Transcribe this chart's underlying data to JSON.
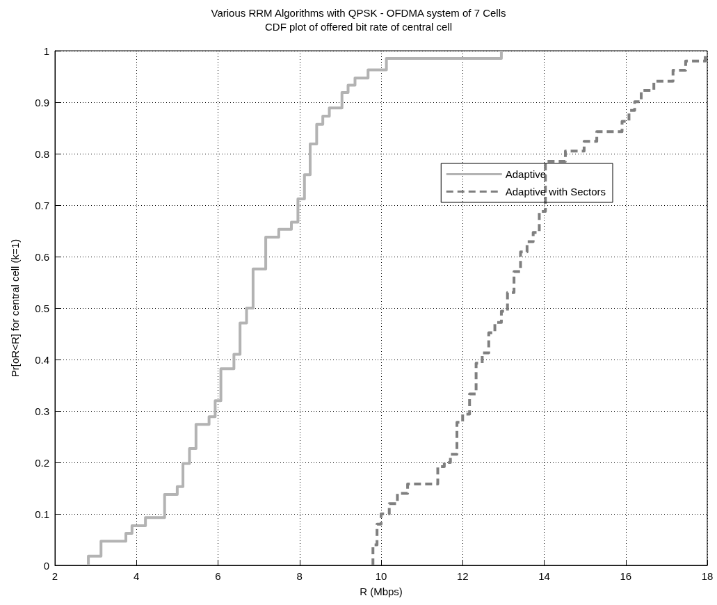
{
  "chart_data": {
    "type": "step",
    "title": "Various RRM Algorithms with QPSK - OFDMA system of 7 Cells",
    "subtitle": "CDF plot of offered bit rate of central cell",
    "xlabel": "R (Mbps)",
    "ylabel": "Pr[oR<R] for central cell (k=1)",
    "xlim": [
      2,
      18
    ],
    "xticks": [
      2,
      4,
      6,
      8,
      10,
      12,
      14,
      16,
      18
    ],
    "ylim": [
      0,
      1
    ],
    "yticks": [
      0,
      0.1,
      0.2,
      0.3,
      0.4,
      0.5,
      0.6,
      0.7,
      0.8,
      0.9,
      1
    ],
    "grid": true,
    "legend": "right",
    "series": [
      {
        "name": "Adaptive",
        "color": "#b3b3b3",
        "line_style": "solid",
        "x": [
          2.82,
          2.82,
          3.13,
          3.74,
          3.89,
          4.22,
          4.69,
          5.0,
          5.14,
          5.3,
          5.46,
          5.78,
          5.93,
          6.07,
          6.39,
          6.54,
          6.7,
          6.86,
          7.17,
          7.49,
          7.8,
          7.96,
          8.12,
          8.26,
          8.42,
          8.57,
          8.73,
          9.04,
          9.19,
          9.36,
          9.68,
          10.13,
          12.95
        ],
        "values": [
          0,
          0.018,
          0.047,
          0.062,
          0.077,
          0.093,
          0.138,
          0.153,
          0.198,
          0.227,
          0.274,
          0.289,
          0.32,
          0.382,
          0.41,
          0.471,
          0.5,
          0.576,
          0.638,
          0.653,
          0.667,
          0.712,
          0.759,
          0.819,
          0.857,
          0.873,
          0.889,
          0.919,
          0.933,
          0.947,
          0.963,
          0.985,
          1
        ]
      },
      {
        "name": "Adaptive with Sectors",
        "color": "#7f7f7f",
        "line_style": "dashed",
        "x": [
          9.8,
          9.8,
          9.9,
          10.0,
          10.2,
          10.4,
          10.65,
          11.39,
          11.55,
          11.7,
          11.86,
          12.0,
          12.17,
          12.33,
          12.48,
          12.64,
          12.79,
          12.95,
          13.1,
          13.26,
          13.42,
          13.58,
          13.73,
          13.88,
          14.03,
          14.52,
          14.98,
          15.29,
          15.91,
          16.08,
          16.22,
          16.38,
          16.69,
          17.16,
          17.47,
          17.95
        ],
        "values": [
          0,
          0.04,
          0.08,
          0.1,
          0.12,
          0.14,
          0.158,
          0.192,
          0.2,
          0.216,
          0.278,
          0.294,
          0.333,
          0.393,
          0.413,
          0.452,
          0.472,
          0.494,
          0.53,
          0.571,
          0.609,
          0.629,
          0.647,
          0.688,
          0.785,
          0.805,
          0.824,
          0.843,
          0.863,
          0.884,
          0.901,
          0.923,
          0.941,
          0.962,
          0.98,
          0.994
        ]
      }
    ]
  }
}
